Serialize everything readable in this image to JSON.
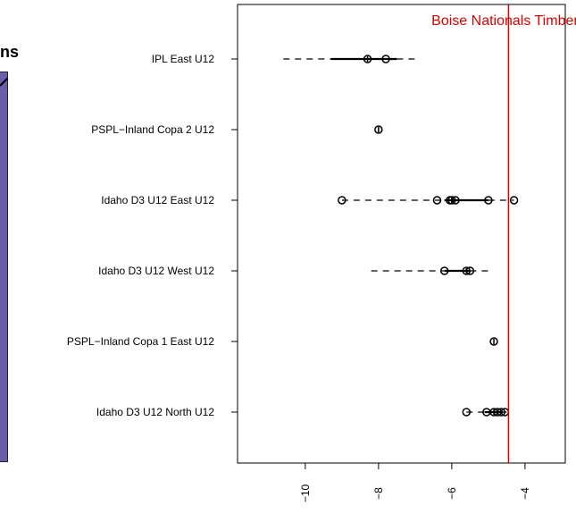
{
  "background_fragment": {
    "title_fragment": "ns"
  },
  "chart_data": {
    "type": "boxplot",
    "orientation": "horizontal",
    "categories": [
      "IPL East U12",
      "PSPL−Inland Copa 2 U12",
      "Idaho D3 U12 East U12",
      "Idaho D3 U12 West U12",
      "PSPL−Inland Copa 1 East U12",
      "Idaho D3 U12 North U12"
    ],
    "boxes": [
      {
        "category": "IPL East U12",
        "whisker_low": -10.6,
        "q1": -9.3,
        "median": -8.3,
        "q3": -7.5,
        "whisker_high": -6.9,
        "points": [
          -8.3,
          -7.8
        ]
      },
      {
        "category": "PSPL−Inland Copa 2 U12",
        "whisker_low": -8.0,
        "q1": -8.0,
        "median": -8.0,
        "q3": -8.0,
        "whisker_high": -8.0,
        "points": [
          -8.0
        ]
      },
      {
        "category": "Idaho D3 U12 East U12",
        "whisker_low": -9.0,
        "q1": -6.2,
        "median": -6.0,
        "q3": -5.0,
        "whisker_high": -4.3,
        "points": [
          -9.0,
          -6.4,
          -6.05,
          -6.0,
          -5.9,
          -5.0,
          -4.3
        ]
      },
      {
        "category": "Idaho D3 U12 West U12",
        "whisker_low": -8.2,
        "q1": -6.2,
        "median": -5.6,
        "q3": -5.5,
        "whisker_high": -5.0,
        "points": [
          -6.2,
          -5.6,
          -5.5
        ]
      },
      {
        "category": "PSPL−Inland Copa 1 East U12",
        "whisker_low": -4.85,
        "q1": -4.85,
        "median": -4.85,
        "q3": -4.85,
        "whisker_high": -4.85,
        "points": [
          -4.85
        ]
      },
      {
        "category": "Idaho D3 U12 North U12",
        "whisker_low": -5.6,
        "q1": -5.1,
        "median": -4.85,
        "q3": -4.6,
        "whisker_high": -4.5,
        "points": [
          -5.6,
          -5.05,
          -4.85,
          -4.75,
          -4.65,
          -4.55
        ]
      }
    ],
    "x_ticks": [
      -10,
      -8,
      -6,
      -4
    ],
    "x_tick_labels": [
      "−10",
      "−8",
      "−6",
      "−4"
    ],
    "xlim": [
      -11.85,
      -2.9
    ],
    "reference_line": {
      "value": -4.45,
      "label": "Boise Nationals Timbers",
      "color": "#dd0000"
    },
    "title": "",
    "xlabel": "",
    "ylabel": "",
    "grid": false,
    "legend": "none"
  }
}
